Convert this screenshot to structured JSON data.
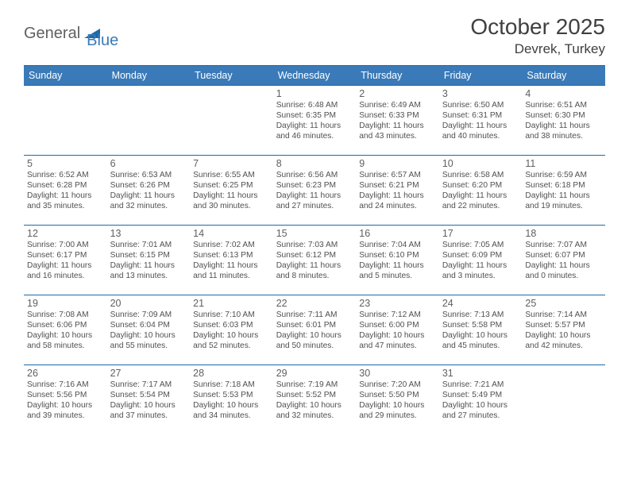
{
  "logo": {
    "part1": "General",
    "part2": "Blue",
    "mark_fill": "#1d6aa8"
  },
  "title": "October 2025",
  "location": "Devrek, Turkey",
  "header_bg": "#3a7ab8",
  "header_fg": "#ffffff",
  "rule_color": "#1d6aa8",
  "text_color": "#505050",
  "day_headers": [
    "Sunday",
    "Monday",
    "Tuesday",
    "Wednesday",
    "Thursday",
    "Friday",
    "Saturday"
  ],
  "weeks": [
    [
      null,
      null,
      null,
      {
        "n": "1",
        "sr": "6:48 AM",
        "ss": "6:35 PM",
        "dh": "11",
        "dm": "46"
      },
      {
        "n": "2",
        "sr": "6:49 AM",
        "ss": "6:33 PM",
        "dh": "11",
        "dm": "43"
      },
      {
        "n": "3",
        "sr": "6:50 AM",
        "ss": "6:31 PM",
        "dh": "11",
        "dm": "40"
      },
      {
        "n": "4",
        "sr": "6:51 AM",
        "ss": "6:30 PM",
        "dh": "11",
        "dm": "38"
      }
    ],
    [
      {
        "n": "5",
        "sr": "6:52 AM",
        "ss": "6:28 PM",
        "dh": "11",
        "dm": "35"
      },
      {
        "n": "6",
        "sr": "6:53 AM",
        "ss": "6:26 PM",
        "dh": "11",
        "dm": "32"
      },
      {
        "n": "7",
        "sr": "6:55 AM",
        "ss": "6:25 PM",
        "dh": "11",
        "dm": "30"
      },
      {
        "n": "8",
        "sr": "6:56 AM",
        "ss": "6:23 PM",
        "dh": "11",
        "dm": "27"
      },
      {
        "n": "9",
        "sr": "6:57 AM",
        "ss": "6:21 PM",
        "dh": "11",
        "dm": "24"
      },
      {
        "n": "10",
        "sr": "6:58 AM",
        "ss": "6:20 PM",
        "dh": "11",
        "dm": "22"
      },
      {
        "n": "11",
        "sr": "6:59 AM",
        "ss": "6:18 PM",
        "dh": "11",
        "dm": "19"
      }
    ],
    [
      {
        "n": "12",
        "sr": "7:00 AM",
        "ss": "6:17 PM",
        "dh": "11",
        "dm": "16"
      },
      {
        "n": "13",
        "sr": "7:01 AM",
        "ss": "6:15 PM",
        "dh": "11",
        "dm": "13"
      },
      {
        "n": "14",
        "sr": "7:02 AM",
        "ss": "6:13 PM",
        "dh": "11",
        "dm": "11"
      },
      {
        "n": "15",
        "sr": "7:03 AM",
        "ss": "6:12 PM",
        "dh": "11",
        "dm": "8"
      },
      {
        "n": "16",
        "sr": "7:04 AM",
        "ss": "6:10 PM",
        "dh": "11",
        "dm": "5"
      },
      {
        "n": "17",
        "sr": "7:05 AM",
        "ss": "6:09 PM",
        "dh": "11",
        "dm": "3"
      },
      {
        "n": "18",
        "sr": "7:07 AM",
        "ss": "6:07 PM",
        "dh": "11",
        "dm": "0"
      }
    ],
    [
      {
        "n": "19",
        "sr": "7:08 AM",
        "ss": "6:06 PM",
        "dh": "10",
        "dm": "58"
      },
      {
        "n": "20",
        "sr": "7:09 AM",
        "ss": "6:04 PM",
        "dh": "10",
        "dm": "55"
      },
      {
        "n": "21",
        "sr": "7:10 AM",
        "ss": "6:03 PM",
        "dh": "10",
        "dm": "52"
      },
      {
        "n": "22",
        "sr": "7:11 AM",
        "ss": "6:01 PM",
        "dh": "10",
        "dm": "50"
      },
      {
        "n": "23",
        "sr": "7:12 AM",
        "ss": "6:00 PM",
        "dh": "10",
        "dm": "47"
      },
      {
        "n": "24",
        "sr": "7:13 AM",
        "ss": "5:58 PM",
        "dh": "10",
        "dm": "45"
      },
      {
        "n": "25",
        "sr": "7:14 AM",
        "ss": "5:57 PM",
        "dh": "10",
        "dm": "42"
      }
    ],
    [
      {
        "n": "26",
        "sr": "7:16 AM",
        "ss": "5:56 PM",
        "dh": "10",
        "dm": "39"
      },
      {
        "n": "27",
        "sr": "7:17 AM",
        "ss": "5:54 PM",
        "dh": "10",
        "dm": "37"
      },
      {
        "n": "28",
        "sr": "7:18 AM",
        "ss": "5:53 PM",
        "dh": "10",
        "dm": "34"
      },
      {
        "n": "29",
        "sr": "7:19 AM",
        "ss": "5:52 PM",
        "dh": "10",
        "dm": "32"
      },
      {
        "n": "30",
        "sr": "7:20 AM",
        "ss": "5:50 PM",
        "dh": "10",
        "dm": "29"
      },
      {
        "n": "31",
        "sr": "7:21 AM",
        "ss": "5:49 PM",
        "dh": "10",
        "dm": "27"
      },
      null
    ]
  ],
  "labels": {
    "sunrise": "Sunrise:",
    "sunset": "Sunset:",
    "daylight_prefix": "Daylight:",
    "hours_word": "hours",
    "and_word": "and",
    "minutes_word": "minutes."
  }
}
